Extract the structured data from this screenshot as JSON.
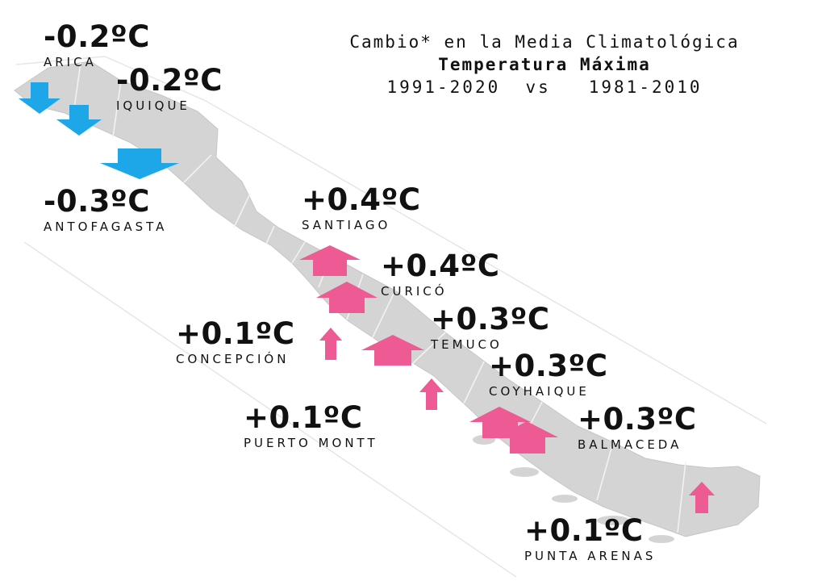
{
  "title": {
    "line1": "Cambio* en la Media Climatológica",
    "line2": "Temperatura Máxima",
    "line3": "1991-2020  vs   1981-2010"
  },
  "colors": {
    "decrease": "#1ea7e8",
    "increase": "#ee5a93",
    "land": "#d4d4d4",
    "border": "#f2f2f2"
  },
  "stations": [
    {
      "name": "ARICA",
      "change": "-0.2ºC",
      "value": -0.2,
      "direction": "down"
    },
    {
      "name": "IQUIQUE",
      "change": "-0.2ºC",
      "value": -0.2,
      "direction": "down"
    },
    {
      "name": "ANTOFAGASTA",
      "change": "-0.3ºC",
      "value": -0.3,
      "direction": "down"
    },
    {
      "name": "SANTIAGO",
      "change": "+0.4ºC",
      "value": 0.4,
      "direction": "up"
    },
    {
      "name": "CURICÓ",
      "change": "+0.4ºC",
      "value": 0.4,
      "direction": "up"
    },
    {
      "name": "CONCEPCIÓN",
      "change": "+0.1ºC",
      "value": 0.1,
      "direction": "up"
    },
    {
      "name": "TEMUCO",
      "change": "+0.3ºC",
      "value": 0.3,
      "direction": "up"
    },
    {
      "name": "PUERTO MONTT",
      "change": "+0.1ºC",
      "value": 0.1,
      "direction": "up"
    },
    {
      "name": "COYHAIQUE",
      "change": "+0.3ºC",
      "value": 0.3,
      "direction": "up"
    },
    {
      "name": "BALMACEDA",
      "change": "+0.3ºC",
      "value": 0.3,
      "direction": "up"
    },
    {
      "name": "PUNTA ARENAS",
      "change": "+0.1ºC",
      "value": 0.1,
      "direction": "up"
    }
  ]
}
